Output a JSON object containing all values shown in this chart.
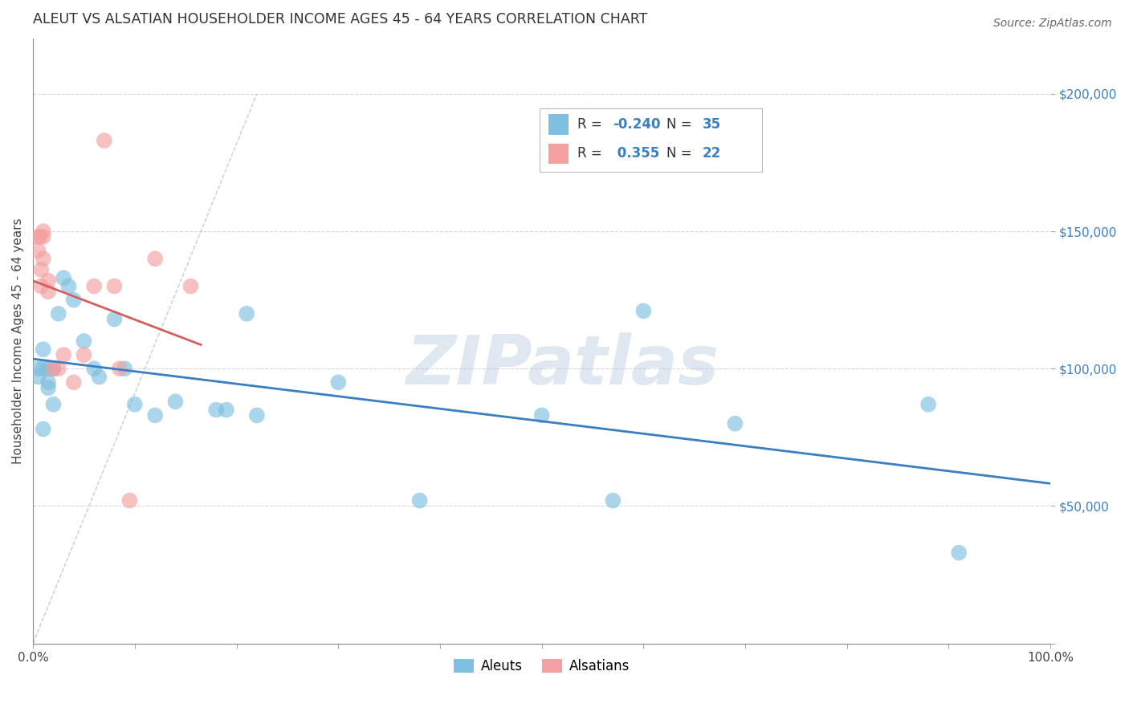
{
  "title": "ALEUT VS ALSATIAN HOUSEHOLDER INCOME AGES 45 - 64 YEARS CORRELATION CHART",
  "source": "Source: ZipAtlas.com",
  "ylabel": "Householder Income Ages 45 - 64 years",
  "xlim": [
    0,
    1.0
  ],
  "ylim": [
    0,
    220000
  ],
  "xticks": [
    0.0,
    0.1,
    0.2,
    0.3,
    0.4,
    0.5,
    0.6,
    0.7,
    0.8,
    0.9,
    1.0
  ],
  "xticklabels": [
    "0.0%",
    "",
    "",
    "",
    "",
    "",
    "",
    "",
    "",
    "",
    "100.0%"
  ],
  "yticks": [
    0,
    50000,
    100000,
    150000,
    200000
  ],
  "yticklabels": [
    "",
    "$50,000",
    "$100,000",
    "$150,000",
    "$200,000"
  ],
  "aleuts_x": [
    0.005,
    0.005,
    0.01,
    0.01,
    0.01,
    0.015,
    0.015,
    0.015,
    0.02,
    0.02,
    0.02,
    0.025,
    0.03,
    0.035,
    0.04,
    0.05,
    0.06,
    0.065,
    0.08,
    0.09,
    0.1,
    0.12,
    0.14,
    0.18,
    0.19,
    0.21,
    0.22,
    0.3,
    0.38,
    0.5,
    0.57,
    0.6,
    0.69,
    0.88,
    0.91
  ],
  "aleuts_y": [
    100000,
    97000,
    78000,
    107000,
    100000,
    100000,
    95000,
    93000,
    100000,
    100000,
    87000,
    120000,
    133000,
    130000,
    125000,
    110000,
    100000,
    97000,
    118000,
    100000,
    87000,
    83000,
    88000,
    85000,
    85000,
    120000,
    83000,
    95000,
    52000,
    83000,
    52000,
    121000,
    80000,
    87000,
    33000
  ],
  "alsatians_x": [
    0.005,
    0.005,
    0.007,
    0.008,
    0.008,
    0.01,
    0.01,
    0.01,
    0.015,
    0.015,
    0.02,
    0.025,
    0.03,
    0.04,
    0.05,
    0.06,
    0.07,
    0.08,
    0.085,
    0.095,
    0.12,
    0.155
  ],
  "alsatians_y": [
    148000,
    143000,
    148000,
    136000,
    130000,
    150000,
    148000,
    140000,
    132000,
    128000,
    100000,
    100000,
    105000,
    95000,
    105000,
    130000,
    183000,
    130000,
    100000,
    52000,
    140000,
    130000
  ],
  "aleut_color": "#7fbfdf",
  "alsatian_color": "#f4a0a0",
  "aleut_line_color": "#3a7fc1",
  "alsatian_line_color": "#d45f5f",
  "diagonal_color": "#cccccc",
  "R_aleut": -0.24,
  "N_aleut": 35,
  "R_alsatian": 0.355,
  "N_alsatian": 22,
  "legend_color": "#3a7fc1",
  "watermark": "ZIPatlas",
  "background_color": "#ffffff",
  "grid_color": "#d8d8d8"
}
